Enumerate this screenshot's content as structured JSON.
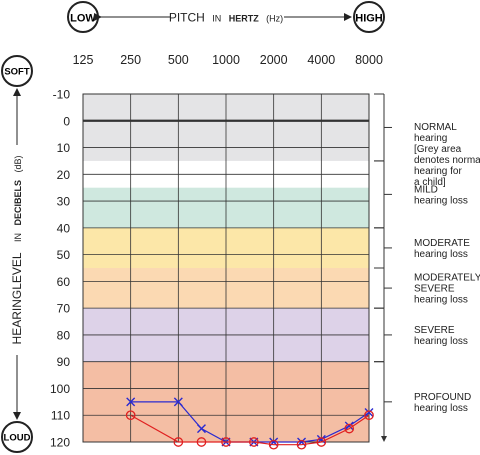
{
  "header": {
    "low_label": "LOW",
    "high_label": "HIGH",
    "pitch_label": "PITCH",
    "pitch_in": "IN",
    "pitch_unit": "HERTZ",
    "pitch_abbr": "(Hz)"
  },
  "side": {
    "soft_label": "SOFT",
    "loud_label": "LOUD",
    "ylabel_main": "HEARINGLEVEL",
    "ylabel_in": "IN",
    "ylabel_unit": "DECIBELS",
    "ylabel_abbr": "(dB)"
  },
  "chart_data": {
    "type": "line",
    "x_ticks": [
      "125",
      "250",
      "500",
      "1000",
      "2000",
      "4000",
      "8000"
    ],
    "x_scale": "log2",
    "xlim": [
      125,
      8000
    ],
    "y_ticks": [
      "-10",
      "0",
      "10",
      "20",
      "30",
      "40",
      "50",
      "60",
      "70",
      "80",
      "90",
      "100",
      "110",
      "120"
    ],
    "ylim": [
      -10,
      120
    ],
    "y_inverted": true,
    "grid": true,
    "bands": [
      {
        "name": "NORMAL",
        "subtitle": "hearing",
        "note": [
          "[Grey area",
          "denotes normal",
          "hearing for",
          "a child]"
        ],
        "range": [
          -10,
          15
        ],
        "fill": "#e4e4e6",
        "bracket": [
          -10,
          15
        ],
        "label_lines": [
          "NORMAL",
          "hearing",
          "[Grey area",
          "denotes normal",
          "hearing for",
          "a child]"
        ]
      },
      {
        "name": "MILD",
        "subtitle": "hearing loss",
        "range": [
          25,
          40
        ],
        "fill": "#cfe8df",
        "bracket": [
          15,
          40
        ],
        "label_lines": [
          "MILD",
          "hearing loss"
        ]
      },
      {
        "name": "MODERATE",
        "subtitle": "hearing loss",
        "range": [
          40,
          55
        ],
        "fill": "#fce7a8",
        "bracket": [
          40,
          55
        ],
        "label_lines": [
          "MODERATE",
          "hearing loss"
        ]
      },
      {
        "name": "MODERATELY SEVERE",
        "subtitle": "hearing loss",
        "range": [
          55,
          70
        ],
        "fill": "#fbd9b2",
        "bracket": [
          55,
          70
        ],
        "label_lines": [
          "MODERATELY",
          "SEVERE",
          "hearing loss"
        ]
      },
      {
        "name": "SEVERE",
        "subtitle": "hearing loss",
        "range": [
          70,
          90
        ],
        "fill": "#ddd2e8",
        "bracket": [
          70,
          90
        ],
        "label_lines": [
          "SEVERE",
          "hearing loss"
        ]
      },
      {
        "name": "PROFOUND",
        "subtitle": "hearing loss",
        "range": [
          90,
          120
        ],
        "fill": "#f4bea4",
        "bracket": [
          90,
          120
        ],
        "label_lines": [
          "PROFOUND",
          "hearing loss"
        ]
      }
    ],
    "series": [
      {
        "marker": "cross",
        "color": "#2a2ad0",
        "points": [
          {
            "x": 250,
            "y": 105
          },
          {
            "x": 500,
            "y": 105
          },
          {
            "x": 700,
            "y": 115
          },
          {
            "x": 1000,
            "y": 120
          },
          {
            "x": 1500,
            "y": 120
          },
          {
            "x": 2000,
            "y": 120
          },
          {
            "x": 3000,
            "y": 120
          },
          {
            "x": 4000,
            "y": 119
          },
          {
            "x": 6000,
            "y": 114
          },
          {
            "x": 8000,
            "y": 109
          }
        ]
      },
      {
        "marker": "circle",
        "color": "#e02020",
        "points": [
          {
            "x": 250,
            "y": 110
          },
          {
            "x": 500,
            "y": 120
          },
          {
            "x": 700,
            "y": 120
          },
          {
            "x": 1000,
            "y": 120
          },
          {
            "x": 1500,
            "y": 120
          },
          {
            "x": 2000,
            "y": 121
          },
          {
            "x": 3000,
            "y": 121
          },
          {
            "x": 4000,
            "y": 120
          },
          {
            "x": 6000,
            "y": 115
          },
          {
            "x": 8000,
            "y": 110
          }
        ]
      }
    ]
  }
}
